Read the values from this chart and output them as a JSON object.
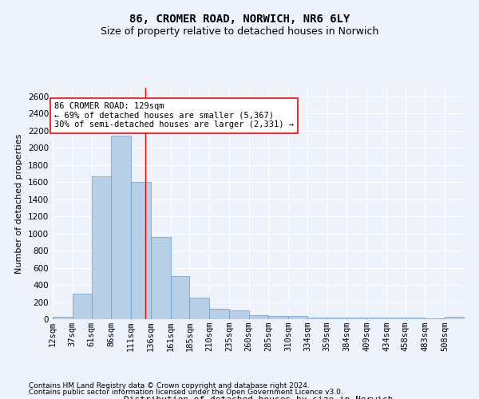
{
  "title1": "86, CROMER ROAD, NORWICH, NR6 6LY",
  "title2": "Size of property relative to detached houses in Norwich",
  "xlabel": "Distribution of detached houses by size in Norwich",
  "ylabel": "Number of detached properties",
  "footnote1": "Contains HM Land Registry data © Crown copyright and database right 2024.",
  "footnote2": "Contains public sector information licensed under the Open Government Licence v3.0.",
  "annotation_line1": "86 CROMER ROAD: 129sqm",
  "annotation_line2": "← 69% of detached houses are smaller (5,367)",
  "annotation_line3": "30% of semi-detached houses are larger (2,331) →",
  "property_size": 129,
  "bar_color": "#b8cfe8",
  "bar_edge_color": "#6699cc",
  "categories": [
    "12sqm",
    "37sqm",
    "61sqm",
    "86sqm",
    "111sqm",
    "136sqm",
    "161sqm",
    "185sqm",
    "210sqm",
    "235sqm",
    "260sqm",
    "285sqm",
    "310sqm",
    "334sqm",
    "359sqm",
    "384sqm",
    "409sqm",
    "434sqm",
    "458sqm",
    "483sqm",
    "508sqm"
  ],
  "values": [
    25,
    300,
    1670,
    2140,
    1600,
    960,
    505,
    250,
    120,
    100,
    50,
    40,
    35,
    20,
    20,
    20,
    20,
    15,
    15,
    8,
    25
  ],
  "bin_edges": [
    12,
    37,
    61,
    86,
    111,
    136,
    161,
    185,
    210,
    235,
    260,
    285,
    310,
    334,
    359,
    384,
    409,
    434,
    458,
    483,
    508,
    533
  ],
  "ylim": [
    0,
    2700
  ],
  "yticks": [
    0,
    200,
    400,
    600,
    800,
    1000,
    1200,
    1400,
    1600,
    1800,
    2000,
    2200,
    2400,
    2600
  ],
  "background_color": "#eef2fb",
  "grid_color": "#ffffff",
  "title1_fontsize": 10,
  "title2_fontsize": 9,
  "annotation_fontsize": 7.5,
  "axis_fontsize": 8,
  "tick_fontsize": 7.5,
  "footnote_fontsize": 6.5
}
